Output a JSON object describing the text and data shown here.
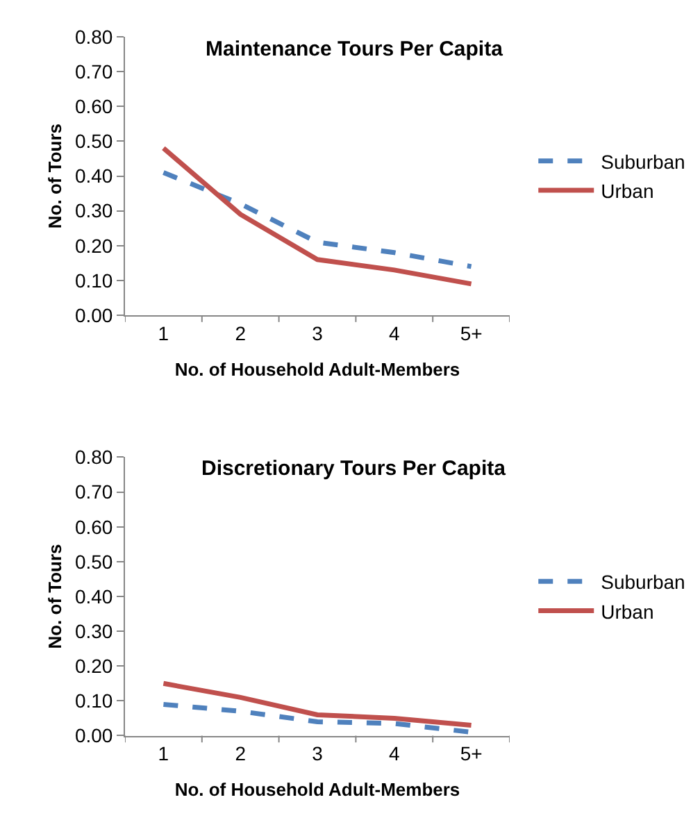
{
  "chart_data": [
    {
      "type": "line",
      "title": "Maintenance Tours Per Capita",
      "xlabel": "No. of Household Adult-Members",
      "ylabel": "No. of Tours",
      "categories": [
        "1",
        "2",
        "3",
        "4",
        "5+"
      ],
      "series": [
        {
          "name": "Suburban",
          "color": "#4f81bd",
          "line_style": "dashed",
          "values": [
            0.41,
            0.32,
            0.21,
            0.18,
            0.14
          ]
        },
        {
          "name": "Urban",
          "color": "#c0504d",
          "line_style": "solid",
          "values": [
            0.48,
            0.29,
            0.16,
            0.13,
            0.09
          ]
        }
      ],
      "ylim": [
        0,
        0.8
      ],
      "yticks": [
        {
          "value": 0,
          "label": "0.00"
        },
        {
          "value": 0.1,
          "label": "0.10"
        },
        {
          "value": 0.2,
          "label": "0.20"
        },
        {
          "value": 0.3,
          "label": "0.30"
        },
        {
          "value": 0.4,
          "label": "0.40"
        },
        {
          "value": 0.5,
          "label": "0.50"
        },
        {
          "value": 0.6,
          "label": "0.60"
        },
        {
          "value": 0.7,
          "label": "0.70"
        },
        {
          "value": 0.8,
          "label": "0.80"
        }
      ],
      "grid": false,
      "legend": "right",
      "marker": "none"
    },
    {
      "type": "line",
      "title": "Discretionary Tours Per Capita",
      "xlabel": "No. of Household Adult-Members",
      "ylabel": "No. of Tours",
      "categories": [
        "1",
        "2",
        "3",
        "4",
        "5+"
      ],
      "series": [
        {
          "name": "Suburban",
          "color": "#4f81bd",
          "line_style": "dashed",
          "values": [
            0.09,
            0.07,
            0.04,
            0.035,
            0.01
          ]
        },
        {
          "name": "Urban",
          "color": "#c0504d",
          "line_style": "solid",
          "values": [
            0.15,
            0.11,
            0.06,
            0.05,
            0.03
          ]
        }
      ],
      "ylim": [
        0,
        0.8
      ],
      "yticks": [
        {
          "value": 0,
          "label": "0.00"
        },
        {
          "value": 0.1,
          "label": "0.10"
        },
        {
          "value": 0.2,
          "label": "0.20"
        },
        {
          "value": 0.3,
          "label": "0.30"
        },
        {
          "value": 0.4,
          "label": "0.40"
        },
        {
          "value": 0.5,
          "label": "0.50"
        },
        {
          "value": 0.6,
          "label": "0.60"
        },
        {
          "value": 0.7,
          "label": "0.70"
        },
        {
          "value": 0.8,
          "label": "0.80"
        }
      ],
      "grid": false,
      "legend": "right",
      "marker": "none"
    }
  ]
}
